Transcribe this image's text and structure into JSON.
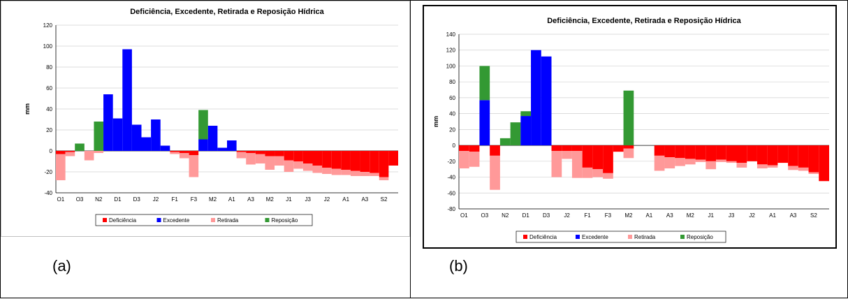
{
  "panels": [
    {
      "label": "(a)"
    },
    {
      "label": "(b)"
    }
  ],
  "colors": {
    "Deficiência": "#ff0000",
    "Excedente": "#0000ff",
    "Retirada": "#ff9999",
    "Reposição": "#339933"
  },
  "chart_data": [
    {
      "type": "bar",
      "stacked": true,
      "title": "Deficiência, Excedente, Retirada e Reposição Hídrica",
      "ylabel": "mm",
      "xlabel": "",
      "ylim": [
        -40,
        120
      ],
      "yticks": [
        -40,
        -20,
        0,
        20,
        40,
        60,
        80,
        100,
        120
      ],
      "grid": true,
      "legend": "bottom",
      "categories": [
        "O1",
        "O2",
        "O3",
        "N1",
        "N2",
        "N3",
        "D1",
        "D2",
        "D3",
        "J1",
        "J2",
        "J3",
        "F1",
        "F2",
        "F3",
        "M1",
        "M2",
        "M3",
        "A1",
        "A2",
        "A3",
        "M1",
        "M2",
        "M3",
        "J1",
        "J2",
        "J3",
        "J1",
        "J2",
        "J3",
        "A1",
        "A2",
        "A3",
        "S1",
        "S2",
        "S3"
      ],
      "xtick_labels": [
        "O1",
        "O3",
        "N2",
        "D1",
        "D3",
        "J2",
        "F1",
        "F3",
        "M2",
        "A1",
        "A3",
        "M2",
        "J1",
        "J3",
        "J2",
        "A1",
        "A3",
        "S2"
      ],
      "series": [
        {
          "name": "Deficiência",
          "values": [
            -3,
            -1,
            0,
            0,
            0,
            0,
            0,
            0,
            0,
            0,
            0,
            0,
            -1,
            -2,
            -4,
            0,
            0,
            0,
            0,
            -1,
            -2,
            -3,
            -5,
            -5,
            -9,
            -10,
            -12,
            -14,
            -16,
            -17,
            -18,
            -19,
            -20,
            -21,
            -25,
            -14
          ]
        },
        {
          "name": "Excedente",
          "values": [
            0,
            0,
            0,
            0,
            0,
            54,
            31,
            97,
            25,
            13,
            30,
            5,
            0,
            0,
            0,
            11,
            24,
            3,
            10,
            0,
            0,
            0,
            0,
            0,
            0,
            0,
            0,
            0,
            0,
            0,
            0,
            0,
            0,
            0,
            0,
            0
          ]
        },
        {
          "name": "Retirada",
          "values": [
            -25,
            -4,
            0,
            -9,
            -2,
            0,
            0,
            0,
            0,
            0,
            0,
            0,
            -2,
            -5,
            -21,
            0,
            0,
            0,
            0,
            -6,
            -11,
            -9,
            -13,
            -9,
            -11,
            -7,
            -7,
            -7,
            -6,
            -6,
            -5,
            -5,
            -4,
            -3,
            -3,
            0
          ]
        },
        {
          "name": "Reposição",
          "values": [
            0,
            0,
            7,
            0,
            28,
            0,
            0,
            0,
            0,
            0,
            0,
            0,
            0,
            0,
            0,
            28,
            0,
            0,
            0,
            0,
            0,
            0,
            0,
            0,
            0,
            0,
            0,
            0,
            0,
            0,
            0,
            0,
            0,
            0,
            0,
            0
          ]
        }
      ]
    },
    {
      "type": "bar",
      "stacked": true,
      "title": "Deficiência, Excedente, Retirada e Reposição Hídrica",
      "ylabel": "mm",
      "xlabel": "",
      "ylim": [
        -80,
        140
      ],
      "yticks": [
        -80,
        -60,
        -40,
        -20,
        0,
        20,
        40,
        60,
        80,
        100,
        120,
        140
      ],
      "grid": true,
      "legend": "bottom",
      "categories": [
        "O1",
        "O2",
        "O3",
        "N1",
        "N2",
        "N3",
        "D1",
        "D2",
        "D3",
        "J1",
        "J2",
        "J3",
        "F1",
        "F2",
        "F3",
        "M1",
        "M2",
        "M3",
        "A1",
        "A2",
        "A3",
        "M1",
        "M2",
        "M3",
        "J1",
        "J2",
        "J3",
        "J1",
        "J2",
        "J3",
        "A1",
        "A2",
        "A3",
        "S1",
        "S2",
        "S3"
      ],
      "xtick_labels": [
        "O1",
        "O3",
        "N2",
        "D1",
        "D3",
        "J2",
        "F1",
        "F3",
        "M2",
        "A1",
        "A3",
        "M2",
        "J1",
        "J3",
        "J2",
        "A1",
        "A3",
        "S2"
      ],
      "series": [
        {
          "name": "Deficiência",
          "values": [
            -7,
            -8,
            0,
            -13,
            0,
            0,
            0,
            0,
            0,
            -7,
            -7,
            -7,
            -28,
            -30,
            -35,
            -8,
            -4,
            0,
            0,
            -13,
            -15,
            -16,
            -17,
            -18,
            -20,
            -18,
            -20,
            -22,
            -20,
            -24,
            -25,
            -22,
            -26,
            -28,
            -34,
            -45
          ]
        },
        {
          "name": "Excedente",
          "values": [
            0,
            0,
            57,
            0,
            0,
            0,
            37,
            120,
            112,
            0,
            0,
            0,
            0,
            0,
            0,
            0,
            0,
            0,
            0,
            0,
            0,
            0,
            0,
            0,
            0,
            0,
            0,
            0,
            0,
            0,
            0,
            0,
            0,
            0,
            0,
            0
          ]
        },
        {
          "name": "Retirada",
          "values": [
            -22,
            -19,
            0,
            -43,
            0,
            0,
            0,
            0,
            0,
            -33,
            -10,
            -34,
            -13,
            -10,
            -7,
            0,
            -12,
            0,
            0,
            -19,
            -14,
            -10,
            -7,
            -3,
            -10,
            -3,
            -2,
            -6,
            0,
            -5,
            -3,
            0,
            -5,
            -4,
            -2,
            0
          ]
        },
        {
          "name": "Reposição",
          "values": [
            0,
            0,
            43,
            0,
            9,
            29,
            6,
            0,
            0,
            0,
            0,
            0,
            0,
            0,
            0,
            0,
            69,
            0,
            0,
            0,
            0,
            0,
            0,
            0,
            0,
            0,
            0,
            0,
            0,
            0,
            0,
            0,
            0,
            0,
            0,
            0
          ]
        }
      ]
    }
  ]
}
